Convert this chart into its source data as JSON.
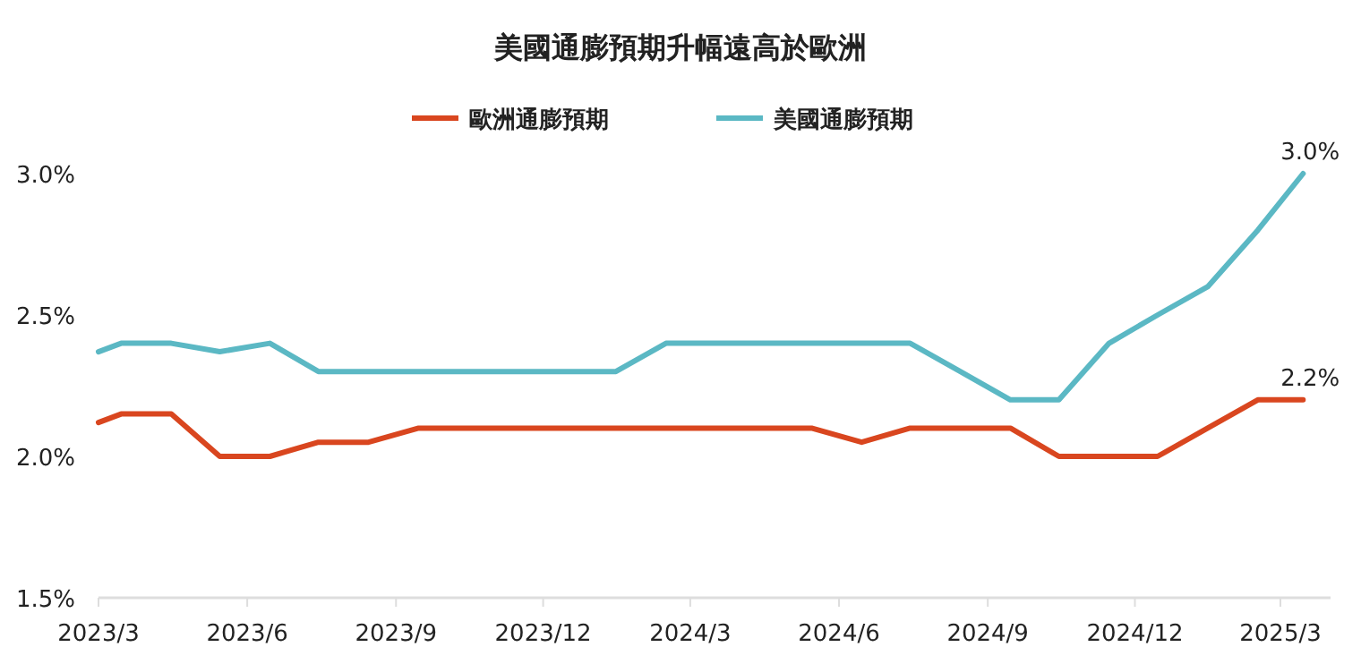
{
  "chart_data": {
    "type": "line",
    "title": "美國通膨預期升幅遠高於歐洲",
    "x": [
      "2023-03-01",
      "2023-03-15",
      "2023-04-15",
      "2023-05-15",
      "2023-06-15",
      "2023-07-15",
      "2023-08-15",
      "2023-09-15",
      "2023-10-15",
      "2023-11-15",
      "2023-12-15",
      "2024-01-15",
      "2024-02-15",
      "2024-03-15",
      "2024-04-15",
      "2024-05-15",
      "2024-06-15",
      "2024-07-15",
      "2024-08-15",
      "2024-09-15",
      "2024-10-15",
      "2024-11-15",
      "2024-12-15",
      "2025-01-15",
      "2025-02-15",
      "2025-03-15"
    ],
    "series": [
      {
        "name": "歐洲通膨預期",
        "color": "#d9461f",
        "values": [
          2.12,
          2.15,
          2.15,
          2.0,
          2.0,
          2.05,
          2.05,
          2.1,
          2.1,
          2.1,
          2.1,
          2.1,
          2.1,
          2.1,
          2.1,
          2.1,
          2.05,
          2.1,
          2.1,
          2.1,
          2.0,
          2.0,
          2.0,
          2.1,
          2.2,
          2.2
        ]
      },
      {
        "name": "美國通膨預期",
        "color": "#5bb8c4",
        "values": [
          2.37,
          2.4,
          2.4,
          2.37,
          2.4,
          2.3,
          2.3,
          2.3,
          2.3,
          2.3,
          2.3,
          2.3,
          2.4,
          2.4,
          2.4,
          2.4,
          2.4,
          2.4,
          2.3,
          2.2,
          2.2,
          2.4,
          2.5,
          2.6,
          2.8,
          3.0
        ]
      }
    ],
    "xlim": [
      "2023-03-01",
      "2025-04-01"
    ],
    "xticks": [
      {
        "value": "2023-03-01",
        "label": "2023/3"
      },
      {
        "value": "2023-06-01",
        "label": "2023/6"
      },
      {
        "value": "2023-09-01",
        "label": "2023/9"
      },
      {
        "value": "2023-12-01",
        "label": "2023/12"
      },
      {
        "value": "2024-03-01",
        "label": "2024/3"
      },
      {
        "value": "2024-06-01",
        "label": "2024/6"
      },
      {
        "value": "2024-09-01",
        "label": "2024/9"
      },
      {
        "value": "2024-12-01",
        "label": "2024/12"
      },
      {
        "value": "2025-03-01",
        "label": "2025/3"
      }
    ],
    "ylim": [
      1.5,
      3.0
    ],
    "yticks": [
      {
        "value": 1.5,
        "label": "1.5%"
      },
      {
        "value": 2.0,
        "label": "2.0%"
      },
      {
        "value": 2.5,
        "label": "2.5%"
      },
      {
        "value": 3.0,
        "label": "3.0%"
      }
    ],
    "annotations": [
      {
        "text": "3.0%",
        "x": "2025-03-15",
        "y": 3.0
      },
      {
        "text": "2.2%",
        "x": "2025-03-15",
        "y": 2.2
      }
    ],
    "legend": "top",
    "grid": false,
    "marker": "none",
    "line_style": "solid"
  }
}
